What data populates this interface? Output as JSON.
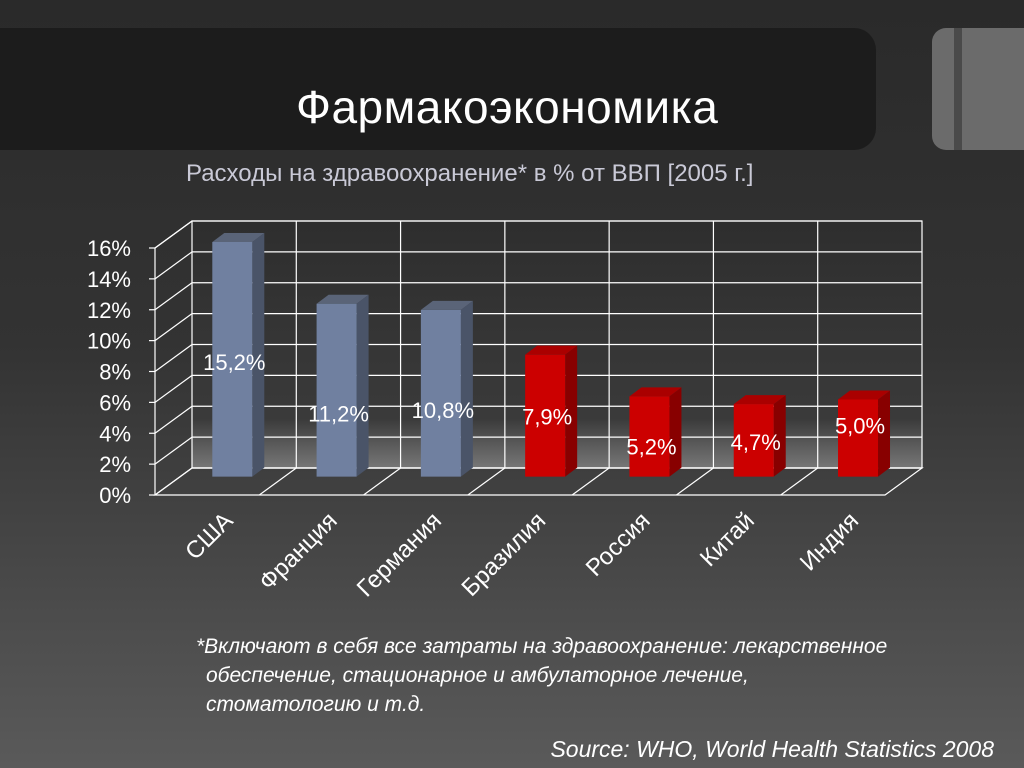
{
  "slide": {
    "title": "Фармакоэкономика",
    "subtitle": "Расходы на здравоохранение* в % от ВВП [2005 г.]",
    "footnote_lines": [
      "*Включают в себя все затраты  на здравоохранение: лекарственное",
      "обеспечение, стационарное и амбулаторное лечение,",
      "стоматологию и т.д."
    ],
    "source": "Source: WHO, World Health Statistics  2008"
  },
  "chart_data": {
    "type": "bar",
    "categories": [
      "США",
      "Франция",
      "Германия",
      "Бразилия",
      "Россия",
      "Китай",
      "Индия"
    ],
    "values": [
      15.2,
      11.2,
      10.8,
      7.9,
      5.2,
      4.7,
      5.0
    ],
    "data_labels": [
      "15,2%",
      "11,2%",
      "10,8%",
      "7,9%",
      "5,2%",
      "4,7%",
      "5,0%"
    ],
    "y_ticks": [
      "0%",
      "2%",
      "4%",
      "6%",
      "8%",
      "10%",
      "12%",
      "14%",
      "16%"
    ],
    "ylim": [
      0,
      16
    ],
    "grid": true,
    "bar_colors": [
      "#7080a0",
      "#7080a0",
      "#7080a0",
      "#cc0000",
      "#cc0000",
      "#cc0000",
      "#cc0000"
    ],
    "xlabel": "",
    "ylabel": ""
  }
}
